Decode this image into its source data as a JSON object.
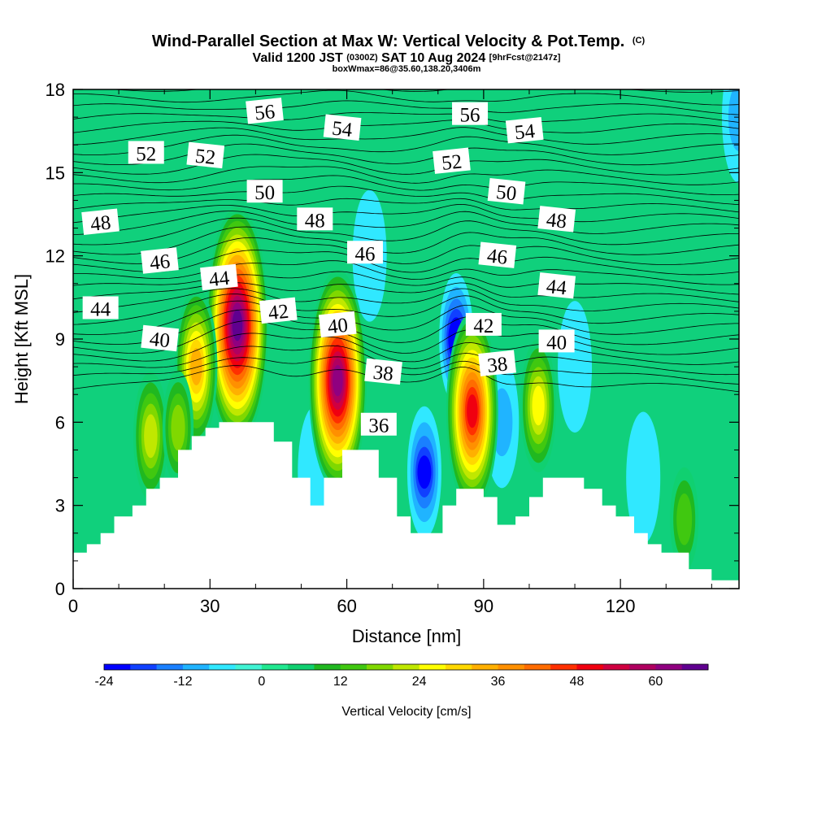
{
  "title": {
    "main": "Wind-Parallel Section at Max W: Vertical Velocity & Pot.Temp.",
    "copyright": "(C)",
    "valid_prefix": "Valid 1200 JST",
    "utc": "(0300Z)",
    "valid_date": "SAT 10 Aug 2024",
    "forecast": "[9hrFcst@2147z]",
    "box_info": "boxWmax=86@35.60,138.20,3406m"
  },
  "chart_data": {
    "type": "heatmap",
    "xlabel": "Distance [nm]",
    "ylabel": "Height [Kft MSL]",
    "xlim": [
      0,
      146
    ],
    "ylim": [
      0,
      18
    ],
    "x_ticks": [
      0,
      30,
      60,
      90,
      120
    ],
    "y_ticks": [
      0,
      3,
      6,
      9,
      12,
      15,
      18
    ],
    "colorbar": {
      "label": "Vertical Velocity [cm/s]",
      "min": -24,
      "max": 68,
      "step": 4,
      "ticks": [
        -24,
        -12,
        0,
        12,
        24,
        36,
        48,
        60
      ],
      "colors": [
        "#0000ff",
        "#1040ff",
        "#1a80ff",
        "#20b4ff",
        "#30e8ff",
        "#40f4d4",
        "#20e890",
        "#10d070",
        "#20b820",
        "#40c810",
        "#80d800",
        "#c0e800",
        "#ffff00",
        "#ffd800",
        "#ffb000",
        "#ff9000",
        "#ff6c00",
        "#ff3000",
        "#f00010",
        "#d00040",
        "#b00060",
        "#900080",
        "#600090"
      ]
    },
    "terrain": [
      [
        0,
        1.3
      ],
      [
        3,
        1.3
      ],
      [
        3,
        1.6
      ],
      [
        6,
        1.6
      ],
      [
        6,
        2.0
      ],
      [
        9,
        2.0
      ],
      [
        9,
        2.6
      ],
      [
        13,
        2.6
      ],
      [
        13,
        3.0
      ],
      [
        16,
        3.0
      ],
      [
        16,
        3.6
      ],
      [
        19,
        3.6
      ],
      [
        19,
        4.0
      ],
      [
        23,
        4.0
      ],
      [
        23,
        5.0
      ],
      [
        26,
        5.0
      ],
      [
        26,
        5.5
      ],
      [
        29,
        5.5
      ],
      [
        29,
        5.8
      ],
      [
        32,
        5.8
      ],
      [
        32,
        6.0
      ],
      [
        44,
        6.0
      ],
      [
        44,
        5.3
      ],
      [
        48,
        5.3
      ],
      [
        48,
        4.0
      ],
      [
        52,
        4.0
      ],
      [
        52,
        3.0
      ],
      [
        55,
        3.0
      ],
      [
        55,
        4.0
      ],
      [
        59,
        4.0
      ],
      [
        59,
        5.0
      ],
      [
        67,
        5.0
      ],
      [
        67,
        4.0
      ],
      [
        71,
        4.0
      ],
      [
        71,
        2.6
      ],
      [
        74,
        2.6
      ],
      [
        74,
        2.0
      ],
      [
        81,
        2.0
      ],
      [
        81,
        3.0
      ],
      [
        84,
        3.0
      ],
      [
        84,
        3.6
      ],
      [
        90,
        3.6
      ],
      [
        90,
        3.3
      ],
      [
        93,
        3.3
      ],
      [
        93,
        2.3
      ],
      [
        97,
        2.3
      ],
      [
        97,
        2.6
      ],
      [
        100,
        2.6
      ],
      [
        100,
        3.3
      ],
      [
        103,
        3.3
      ],
      [
        103,
        4.0
      ],
      [
        112,
        4.0
      ],
      [
        112,
        3.6
      ],
      [
        116,
        3.6
      ],
      [
        116,
        3.0
      ],
      [
        119,
        3.0
      ],
      [
        119,
        2.6
      ],
      [
        123,
        2.6
      ],
      [
        123,
        2.0
      ],
      [
        126,
        2.0
      ],
      [
        126,
        1.6
      ],
      [
        129,
        1.6
      ],
      [
        129,
        1.3
      ],
      [
        135,
        1.3
      ],
      [
        135,
        0.7
      ],
      [
        140,
        0.7
      ],
      [
        140,
        0.3
      ],
      [
        146,
        0.3
      ]
    ],
    "updrafts": [
      {
        "x": 36,
        "y": 9.5,
        "peak": 66
      },
      {
        "x": 27,
        "y": 8.0,
        "peak": 34
      },
      {
        "x": 58,
        "y": 7.5,
        "peak": 60
      },
      {
        "x": 87.5,
        "y": 6.4,
        "peak": 50
      },
      {
        "x": 102,
        "y": 6.6,
        "peak": 24
      },
      {
        "x": 17,
        "y": 5.5,
        "peak": 22
      },
      {
        "x": 23,
        "y": 5.8,
        "peak": 16
      },
      {
        "x": 134,
        "y": 2.5,
        "peak": 12
      }
    ],
    "downdrafts": [
      {
        "x": 77,
        "y": 4.2,
        "min": -20
      },
      {
        "x": 84,
        "y": 9.0,
        "min": -24
      },
      {
        "x": 94,
        "y": 6.0,
        "min": -8
      },
      {
        "x": 53,
        "y": 4.2,
        "min": -5
      },
      {
        "x": 146,
        "y": 17.0,
        "min": -10
      },
      {
        "x": 110,
        "y": 8.0,
        "min": -5
      },
      {
        "x": 65,
        "y": 12.0,
        "min": -5
      },
      {
        "x": 125,
        "y": 4.0,
        "min": -5
      }
    ],
    "isentrope_labels": [
      {
        "text": "56",
        "x": 42,
        "y": 17.2
      },
      {
        "text": "56",
        "x": 87,
        "y": 17.1
      },
      {
        "text": "54",
        "x": 59,
        "y": 16.6
      },
      {
        "text": "54",
        "x": 99,
        "y": 16.5
      },
      {
        "text": "52",
        "x": 16,
        "y": 15.7
      },
      {
        "text": "52",
        "x": 29,
        "y": 15.6
      },
      {
        "text": "52",
        "x": 83,
        "y": 15.4
      },
      {
        "text": "50",
        "x": 42,
        "y": 14.3
      },
      {
        "text": "50",
        "x": 95,
        "y": 14.3
      },
      {
        "text": "48",
        "x": 6,
        "y": 13.2
      },
      {
        "text": "48",
        "x": 53,
        "y": 13.3
      },
      {
        "text": "48",
        "x": 106,
        "y": 13.3
      },
      {
        "text": "46",
        "x": 19,
        "y": 11.8
      },
      {
        "text": "46",
        "x": 64,
        "y": 12.1
      },
      {
        "text": "46",
        "x": 93,
        "y": 12.0
      },
      {
        "text": "44",
        "x": 32,
        "y": 11.2
      },
      {
        "text": "44",
        "x": 6,
        "y": 10.1
      },
      {
        "text": "44",
        "x": 106,
        "y": 10.9
      },
      {
        "text": "42",
        "x": 45,
        "y": 10.0
      },
      {
        "text": "42",
        "x": 90,
        "y": 9.5
      },
      {
        "text": "40",
        "x": 19,
        "y": 9.0
      },
      {
        "text": "40",
        "x": 58,
        "y": 9.5
      },
      {
        "text": "40",
        "x": 106,
        "y": 8.9
      },
      {
        "text": "38",
        "x": 68,
        "y": 7.8
      },
      {
        "text": "38",
        "x": 93,
        "y": 8.1
      },
      {
        "text": "36",
        "x": 67,
        "y": 5.9
      }
    ]
  }
}
